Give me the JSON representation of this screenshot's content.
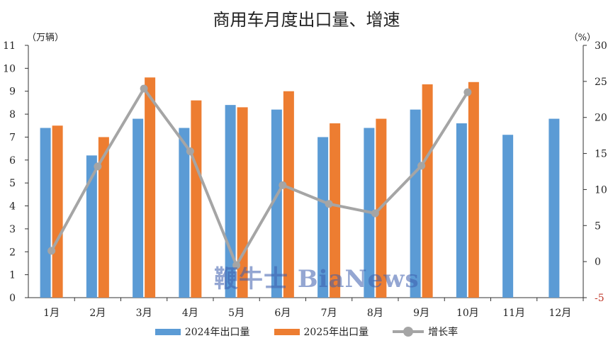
{
  "chart_data": {
    "type": "bar",
    "title": "商用车月度出口量、增速",
    "y_unit_left": "（万辆）",
    "y_unit_right": "（%）",
    "categories": [
      "1月",
      "2月",
      "3月",
      "4月",
      "5月",
      "6月",
      "7月",
      "8月",
      "9月",
      "10月",
      "11月",
      "12月"
    ],
    "series": [
      {
        "name": "2024年出口量",
        "type": "bar",
        "axis": "left",
        "color": "#5b9bd5",
        "values": [
          7.4,
          6.2,
          7.8,
          7.4,
          8.4,
          8.2,
          7.0,
          7.4,
          8.2,
          7.6,
          7.1,
          7.8
        ]
      },
      {
        "name": "2025年出口量",
        "type": "bar",
        "axis": "left",
        "color": "#ed7d31",
        "values": [
          7.5,
          7.0,
          9.6,
          8.6,
          8.3,
          9.0,
          7.6,
          7.8,
          9.3,
          9.4,
          null,
          null
        ]
      },
      {
        "name": "增长率",
        "type": "line",
        "axis": "right",
        "color": "#a5a5a5",
        "values": [
          1.5,
          13.2,
          24.0,
          15.3,
          -0.5,
          10.6,
          8.0,
          6.7,
          13.3,
          23.5,
          null,
          null
        ]
      }
    ],
    "y_left": {
      "min": 0,
      "max": 11,
      "ticks": [
        0,
        1,
        2,
        3,
        4,
        5,
        6,
        7,
        8,
        9,
        10,
        11
      ]
    },
    "y_right": {
      "min": -5,
      "max": 30,
      "ticks": [
        -5,
        0,
        5,
        10,
        15,
        20,
        25,
        30
      ]
    },
    "grid": false,
    "legend_position": "bottom"
  },
  "watermark": "鞭牛士 BiaNews"
}
